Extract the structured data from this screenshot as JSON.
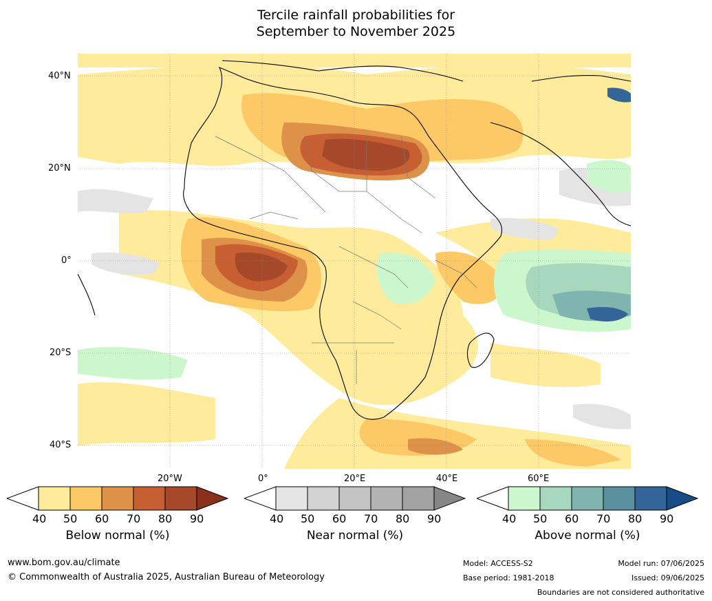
{
  "title_line1": "Tercile rainfall probabilities for",
  "title_line2": "September to November 2025",
  "map": {
    "lat_labels": [
      "40°N",
      "20°N",
      "0°",
      "20°S",
      "40°S"
    ],
    "lon_labels": [
      "20°W",
      "0°",
      "20°E",
      "40°E",
      "60°E"
    ]
  },
  "colorbars": [
    {
      "title": "Below normal (%)",
      "ticks": [
        "40",
        "50",
        "60",
        "70",
        "80",
        "90"
      ],
      "colors": [
        "#ffffff",
        "#ffeb9c",
        "#fdc966",
        "#de9148",
        "#c75f32",
        "#a6482a",
        "#8a2f1c"
      ]
    },
    {
      "title": "Near normal (%)",
      "ticks": [
        "40",
        "50",
        "60",
        "70",
        "80",
        "90"
      ],
      "colors": [
        "#ffffff",
        "#e4e4e4",
        "#d3d3d3",
        "#c3c3c3",
        "#b3b3b3",
        "#a2a2a2",
        "#868686"
      ]
    },
    {
      "title": "Above normal (%)",
      "ticks": [
        "40",
        "50",
        "60",
        "70",
        "80",
        "90"
      ],
      "colors": [
        "#ffffff",
        "#ccf7cc",
        "#a7d8bd",
        "#7fb5ae",
        "#5a8fa0",
        "#336599",
        "#174d86"
      ]
    }
  ],
  "footer": {
    "website": "www.bom.gov.au/climate",
    "copyright": "© Commonwealth of Australia 2025, Australian Bureau of Meteorology",
    "model": "Model: ACCESS-S2",
    "base_period": "Base period: 1981-2018",
    "model_run": "Model run: 07/06/2025",
    "issued": "Issued: 09/06/2025",
    "disclaimer": "Boundaries are not considered authoritative"
  }
}
